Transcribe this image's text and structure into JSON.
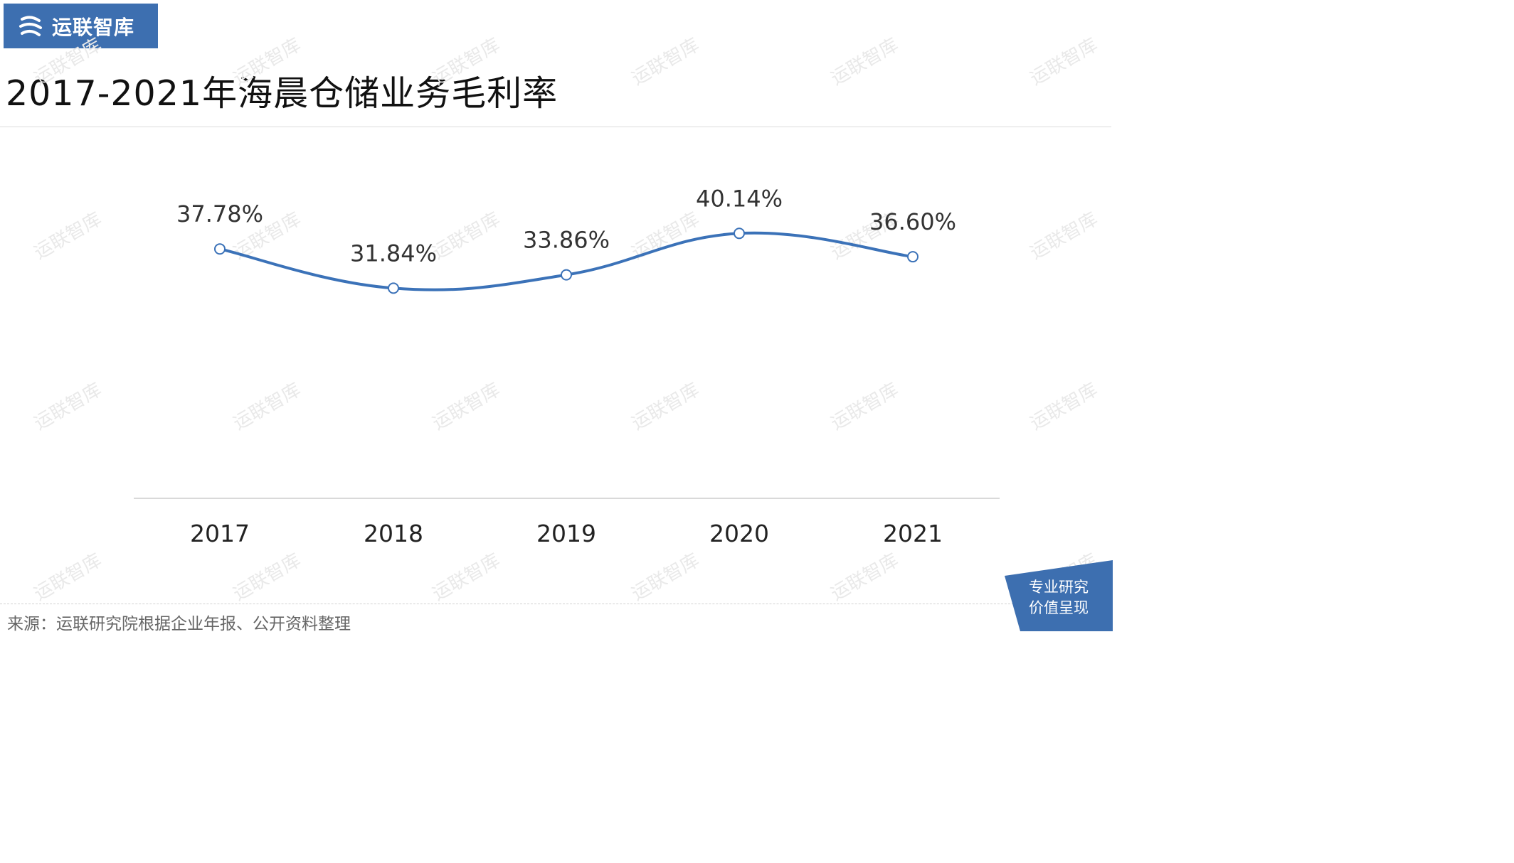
{
  "brand": {
    "logo_text": "运联智库",
    "logo_icon": "yunlian-logo-icon"
  },
  "page": {
    "title": "2017-2021年海晨仓储业务毛利率",
    "source": "来源：运联研究院根据企业年报、公开资料整理",
    "badge_line1": "专业研究",
    "badge_line2": "价值呈现",
    "watermark": "运联智库"
  },
  "colors": {
    "brand": "#3d6fb0",
    "line": "#3b72b8",
    "text": "#333333"
  },
  "chart_data": {
    "type": "line",
    "categories": [
      "2017",
      "2018",
      "2019",
      "2020",
      "2021"
    ],
    "values": [
      37.78,
      31.84,
      33.86,
      40.14,
      36.6
    ],
    "labels": [
      "37.78%",
      "31.84%",
      "33.86%",
      "40.14%",
      "36.60%"
    ],
    "title": "2017-2021年海晨仓储业务毛利率",
    "xlabel": "",
    "ylabel": "",
    "ylim": [
      0,
      60
    ],
    "grid": false,
    "smooth": true,
    "legend": "none"
  }
}
